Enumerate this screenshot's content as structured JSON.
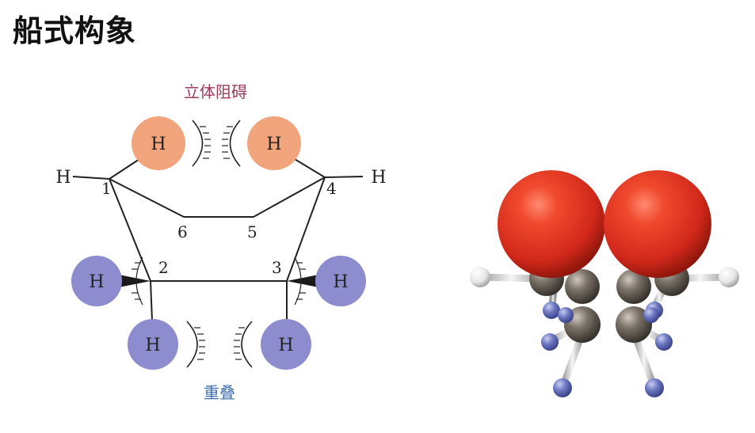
{
  "title": "船式构象",
  "diagram": {
    "label_top": "立体阻碍",
    "label_bottom": "重叠",
    "atom_label": "H",
    "carbon_numbers": [
      "1",
      "2",
      "3",
      "4",
      "5",
      "6"
    ],
    "colors": {
      "axial_h": "#f2a47c",
      "eclipsed_h": "#8d8ccf",
      "label_top": "#9c3b5a",
      "label_bottom": "#3f6fae",
      "bond": "#222222"
    }
  },
  "model": {
    "colors": {
      "flagpole_h": "#e0321f",
      "carbon": "#6b6358",
      "eclipsed_h": "#6b77bf",
      "equatorial_h": "#f2f2f2",
      "bond": "#d9d9d9"
    }
  }
}
